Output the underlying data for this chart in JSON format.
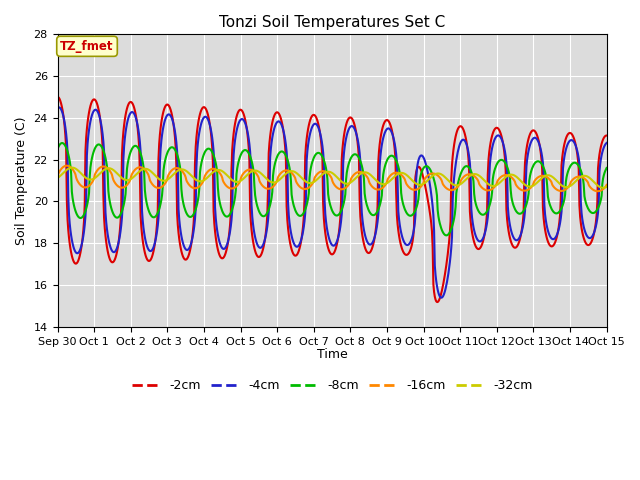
{
  "title": "Tonzi Soil Temperatures Set C",
  "xlabel": "Time",
  "ylabel": "Soil Temperature (C)",
  "ylim": [
    14,
    28
  ],
  "yticks": [
    14,
    16,
    18,
    20,
    22,
    24,
    26,
    28
  ],
  "xtick_labels": [
    "Sep 30",
    "Oct 1",
    "Oct 2",
    "Oct 3",
    "Oct 4",
    "Oct 5",
    "Oct 6",
    "Oct 7",
    "Oct 8",
    "Oct 9",
    "Oct 10",
    "Oct 11",
    "Oct 12",
    "Oct 13",
    "Oct 14",
    "Oct 15"
  ],
  "annotation_text": "TZ_fmet",
  "annotation_color": "#cc0000",
  "annotation_bg": "#ffffcc",
  "annotation_border": "#999900",
  "bg_color": "#dcdcdc",
  "series": [
    {
      "label": "-2cm",
      "color": "#dd0000",
      "lw": 1.5
    },
    {
      "label": "-4cm",
      "color": "#2222cc",
      "lw": 1.5
    },
    {
      "label": "-8cm",
      "color": "#00bb00",
      "lw": 1.5
    },
    {
      "label": "-16cm",
      "color": "#ff8800",
      "lw": 1.5
    },
    {
      "label": "-32cm",
      "color": "#cccc00",
      "lw": 1.5
    }
  ]
}
